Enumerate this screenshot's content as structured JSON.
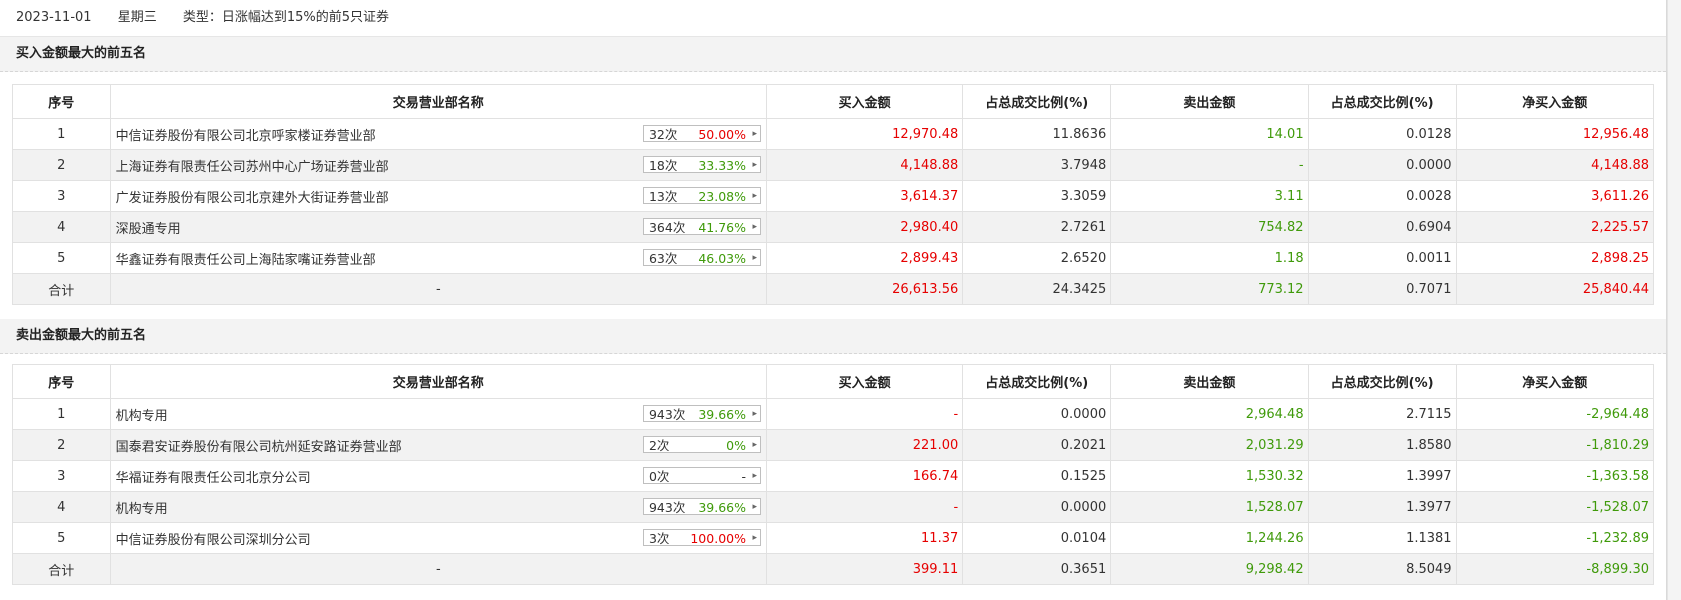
{
  "header": {
    "date": "2023-11-01",
    "weekday": "星期三",
    "type_label": "类型：日涨幅达到15%的前5只证券"
  },
  "columns": [
    "序号",
    "交易营业部名称",
    "买入金额",
    "占总成交比例(%)",
    "卖出金额",
    "占总成交比例(%)",
    "净买入金额"
  ],
  "colors": {
    "up": "#e60000",
    "down": "#3f9a0a",
    "neutral": "#333333"
  },
  "buy_top5": {
    "title": "买入金额最大的前五名",
    "rows": [
      {
        "no": "1",
        "name": "中信证券股份有限公司北京呼家楼证券营业部",
        "times": "32次",
        "rate": "50.00%",
        "rate_color": "red",
        "buy": "12,970.48",
        "buy_pct": "11.8636",
        "sell": "14.01",
        "sell_pct": "0.0128",
        "net": "12,956.48",
        "net_color": "red"
      },
      {
        "no": "2",
        "name": "上海证券有限责任公司苏州中心广场证券营业部",
        "times": "18次",
        "rate": "33.33%",
        "rate_color": "green",
        "buy": "4,148.88",
        "buy_pct": "3.7948",
        "sell": "-",
        "sell_pct": "0.0000",
        "net": "4,148.88",
        "net_color": "red"
      },
      {
        "no": "3",
        "name": "广发证券股份有限公司北京建外大街证券营业部",
        "times": "13次",
        "rate": "23.08%",
        "rate_color": "green",
        "buy": "3,614.37",
        "buy_pct": "3.3059",
        "sell": "3.11",
        "sell_pct": "0.0028",
        "net": "3,611.26",
        "net_color": "red"
      },
      {
        "no": "4",
        "name": "深股通专用",
        "times": "364次",
        "rate": "41.76%",
        "rate_color": "green",
        "buy": "2,980.40",
        "buy_pct": "2.7261",
        "sell": "754.82",
        "sell_pct": "0.6904",
        "net": "2,225.57",
        "net_color": "red"
      },
      {
        "no": "5",
        "name": "华鑫证券有限责任公司上海陆家嘴证券营业部",
        "times": "63次",
        "rate": "46.03%",
        "rate_color": "green",
        "buy": "2,899.43",
        "buy_pct": "2.6520",
        "sell": "1.18",
        "sell_pct": "0.0011",
        "net": "2,898.25",
        "net_color": "red"
      }
    ],
    "total": {
      "label": "合计",
      "name": "-",
      "buy": "26,613.56",
      "buy_pct": "24.3425",
      "sell": "773.12",
      "sell_pct": "0.7071",
      "net": "25,840.44",
      "net_color": "red"
    }
  },
  "sell_top5": {
    "title": "卖出金额最大的前五名",
    "rows": [
      {
        "no": "1",
        "name": "机构专用",
        "times": "943次",
        "rate": "39.66%",
        "rate_color": "green",
        "buy": "-",
        "buy_pct": "0.0000",
        "sell": "2,964.48",
        "sell_pct": "2.7115",
        "net": "-2,964.48",
        "net_color": "green"
      },
      {
        "no": "2",
        "name": "国泰君安证券股份有限公司杭州延安路证券营业部",
        "times": "2次",
        "rate": "0%",
        "rate_color": "green",
        "buy": "221.00",
        "buy_pct": "0.2021",
        "sell": "2,031.29",
        "sell_pct": "1.8580",
        "net": "-1,810.29",
        "net_color": "green"
      },
      {
        "no": "3",
        "name": "华福证券有限责任公司北京分公司",
        "times": "0次",
        "rate": "-",
        "rate_color": "dark",
        "buy": "166.74",
        "buy_pct": "0.1525",
        "sell": "1,530.32",
        "sell_pct": "1.3997",
        "net": "-1,363.58",
        "net_color": "green"
      },
      {
        "no": "4",
        "name": "机构专用",
        "times": "943次",
        "rate": "39.66%",
        "rate_color": "green",
        "buy": "-",
        "buy_pct": "0.0000",
        "sell": "1,528.07",
        "sell_pct": "1.3977",
        "net": "-1,528.07",
        "net_color": "green"
      },
      {
        "no": "5",
        "name": "中信证券股份有限公司深圳分公司",
        "times": "3次",
        "rate": "100.00%",
        "rate_color": "red",
        "buy": "11.37",
        "buy_pct": "0.0104",
        "sell": "1,244.26",
        "sell_pct": "1.1381",
        "net": "-1,232.89",
        "net_color": "green"
      }
    ],
    "total": {
      "label": "合计",
      "name": "-",
      "buy": "399.11",
      "buy_pct": "0.3651",
      "sell": "9,298.42",
      "sell_pct": "8.5049",
      "net": "-8,899.30",
      "net_color": "green"
    }
  },
  "icons": {
    "tag_arrow": "chevron-right-icon"
  }
}
